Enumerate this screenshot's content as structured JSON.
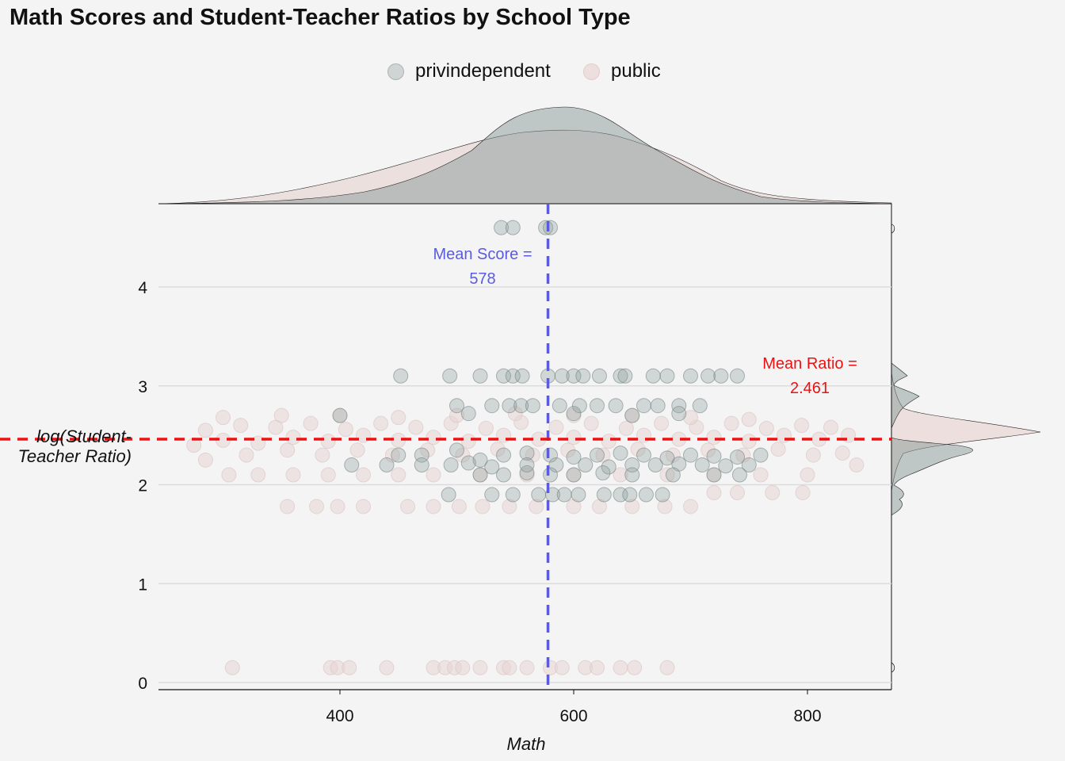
{
  "chart_data": {
    "type": "scatter",
    "title": "Math Scores and Student-Teacher Ratios by School Type",
    "xlabel": "Math",
    "ylabel": "log(Student-Teacher Ratio)",
    "xlim": [
      250,
      870
    ],
    "ylim": [
      -0.08,
      4.8
    ],
    "xticks": [
      400,
      600,
      800
    ],
    "yticks": [
      0,
      1,
      2,
      3,
      4
    ],
    "grid": "horizontal",
    "legend_position": "top",
    "marginal_plots": "density",
    "colors": {
      "privindependent": "#889A97",
      "public": "#E8D5D3",
      "mean_score_line": "#5B5BE0",
      "mean_ratio_line": "#EE1111"
    },
    "series": [
      {
        "name": "privindependent",
        "points": [
          [
            538,
            4.6
          ],
          [
            548,
            4.6
          ],
          [
            576,
            4.6
          ],
          [
            580,
            4.6
          ],
          [
            452,
            3.1
          ],
          [
            494,
            3.1
          ],
          [
            520,
            3.1
          ],
          [
            540,
            3.1
          ],
          [
            548,
            3.1
          ],
          [
            556,
            3.1
          ],
          [
            578,
            3.1
          ],
          [
            590,
            3.1
          ],
          [
            600,
            3.1
          ],
          [
            608,
            3.1
          ],
          [
            622,
            3.1
          ],
          [
            640,
            3.1
          ],
          [
            644,
            3.1
          ],
          [
            668,
            3.1
          ],
          [
            680,
            3.1
          ],
          [
            700,
            3.1
          ],
          [
            715,
            3.1
          ],
          [
            726,
            3.1
          ],
          [
            740,
            3.1
          ],
          [
            500,
            2.8
          ],
          [
            530,
            2.8
          ],
          [
            545,
            2.8
          ],
          [
            555,
            2.8
          ],
          [
            565,
            2.8
          ],
          [
            588,
            2.8
          ],
          [
            605,
            2.8
          ],
          [
            620,
            2.8
          ],
          [
            636,
            2.8
          ],
          [
            660,
            2.8
          ],
          [
            672,
            2.8
          ],
          [
            690,
            2.8
          ],
          [
            708,
            2.8
          ],
          [
            400,
            2.7
          ],
          [
            510,
            2.72
          ],
          [
            600,
            2.72
          ],
          [
            650,
            2.7
          ],
          [
            690,
            2.72
          ],
          [
            450,
            2.3
          ],
          [
            470,
            2.3
          ],
          [
            500,
            2.35
          ],
          [
            520,
            2.25
          ],
          [
            540,
            2.3
          ],
          [
            560,
            2.32
          ],
          [
            580,
            2.3
          ],
          [
            600,
            2.28
          ],
          [
            620,
            2.3
          ],
          [
            640,
            2.32
          ],
          [
            660,
            2.3
          ],
          [
            680,
            2.27
          ],
          [
            700,
            2.3
          ],
          [
            720,
            2.29
          ],
          [
            740,
            2.28
          ],
          [
            760,
            2.3
          ],
          [
            410,
            2.2
          ],
          [
            440,
            2.2
          ],
          [
            470,
            2.2
          ],
          [
            495,
            2.2
          ],
          [
            510,
            2.22
          ],
          [
            530,
            2.18
          ],
          [
            560,
            2.2
          ],
          [
            585,
            2.2
          ],
          [
            610,
            2.2
          ],
          [
            630,
            2.18
          ],
          [
            650,
            2.2
          ],
          [
            670,
            2.2
          ],
          [
            690,
            2.21
          ],
          [
            710,
            2.2
          ],
          [
            730,
            2.19
          ],
          [
            750,
            2.2
          ],
          [
            520,
            2.1
          ],
          [
            540,
            2.1
          ],
          [
            560,
            2.12
          ],
          [
            580,
            2.1
          ],
          [
            600,
            2.1
          ],
          [
            625,
            2.12
          ],
          [
            650,
            2.1
          ],
          [
            685,
            2.1
          ],
          [
            720,
            2.1
          ],
          [
            742,
            2.1
          ],
          [
            493,
            1.9
          ],
          [
            530,
            1.9
          ],
          [
            548,
            1.9
          ],
          [
            570,
            1.9
          ],
          [
            582,
            1.9
          ],
          [
            592,
            1.9
          ],
          [
            604,
            1.9
          ],
          [
            626,
            1.9
          ],
          [
            640,
            1.9
          ],
          [
            648,
            1.9
          ],
          [
            662,
            1.9
          ],
          [
            676,
            1.9
          ]
        ]
      },
      {
        "name": "public",
        "points": [
          [
            308,
            0.15
          ],
          [
            392,
            0.15
          ],
          [
            398,
            0.15
          ],
          [
            408,
            0.15
          ],
          [
            440,
            0.15
          ],
          [
            480,
            0.15
          ],
          [
            490,
            0.15
          ],
          [
            498,
            0.15
          ],
          [
            505,
            0.15
          ],
          [
            520,
            0.15
          ],
          [
            540,
            0.15
          ],
          [
            545,
            0.15
          ],
          [
            560,
            0.15
          ],
          [
            580,
            0.15
          ],
          [
            590,
            0.15
          ],
          [
            610,
            0.15
          ],
          [
            620,
            0.15
          ],
          [
            640,
            0.15
          ],
          [
            652,
            0.15
          ],
          [
            680,
            0.15
          ],
          [
            355,
            1.78
          ],
          [
            380,
            1.78
          ],
          [
            398,
            1.78
          ],
          [
            420,
            1.78
          ],
          [
            458,
            1.78
          ],
          [
            480,
            1.78
          ],
          [
            502,
            1.78
          ],
          [
            522,
            1.78
          ],
          [
            545,
            1.78
          ],
          [
            568,
            1.78
          ],
          [
            600,
            1.78
          ],
          [
            622,
            1.78
          ],
          [
            650,
            1.78
          ],
          [
            678,
            1.78
          ],
          [
            700,
            1.78
          ],
          [
            720,
            1.92
          ],
          [
            740,
            1.92
          ],
          [
            770,
            1.92
          ],
          [
            796,
            1.92
          ],
          [
            305,
            2.1
          ],
          [
            330,
            2.1
          ],
          [
            360,
            2.1
          ],
          [
            390,
            2.1
          ],
          [
            420,
            2.1
          ],
          [
            450,
            2.1
          ],
          [
            480,
            2.1
          ],
          [
            520,
            2.1
          ],
          [
            560,
            2.1
          ],
          [
            600,
            2.1
          ],
          [
            640,
            2.1
          ],
          [
            680,
            2.1
          ],
          [
            720,
            2.1
          ],
          [
            760,
            2.1
          ],
          [
            800,
            2.1
          ],
          [
            842,
            2.2
          ],
          [
            285,
            2.25
          ],
          [
            320,
            2.3
          ],
          [
            355,
            2.35
          ],
          [
            385,
            2.3
          ],
          [
            415,
            2.35
          ],
          [
            445,
            2.3
          ],
          [
            475,
            2.35
          ],
          [
            505,
            2.3
          ],
          [
            535,
            2.36
          ],
          [
            565,
            2.3
          ],
          [
            595,
            2.35
          ],
          [
            625,
            2.3
          ],
          [
            655,
            2.36
          ],
          [
            685,
            2.3
          ],
          [
            715,
            2.35
          ],
          [
            745,
            2.3
          ],
          [
            775,
            2.36
          ],
          [
            805,
            2.3
          ],
          [
            830,
            2.32
          ],
          [
            275,
            2.4
          ],
          [
            300,
            2.45
          ],
          [
            330,
            2.42
          ],
          [
            360,
            2.48
          ],
          [
            390,
            2.44
          ],
          [
            420,
            2.5
          ],
          [
            450,
            2.45
          ],
          [
            480,
            2.48
          ],
          [
            510,
            2.44
          ],
          [
            540,
            2.5
          ],
          [
            570,
            2.46
          ],
          [
            600,
            2.48
          ],
          [
            630,
            2.44
          ],
          [
            660,
            2.5
          ],
          [
            690,
            2.46
          ],
          [
            720,
            2.48
          ],
          [
            750,
            2.44
          ],
          [
            780,
            2.5
          ],
          [
            810,
            2.46
          ],
          [
            835,
            2.5
          ],
          [
            285,
            2.55
          ],
          [
            315,
            2.6
          ],
          [
            345,
            2.58
          ],
          [
            375,
            2.62
          ],
          [
            405,
            2.56
          ],
          [
            435,
            2.62
          ],
          [
            465,
            2.58
          ],
          [
            495,
            2.62
          ],
          [
            525,
            2.57
          ],
          [
            555,
            2.63
          ],
          [
            585,
            2.58
          ],
          [
            615,
            2.62
          ],
          [
            645,
            2.57
          ],
          [
            675,
            2.62
          ],
          [
            705,
            2.58
          ],
          [
            735,
            2.62
          ],
          [
            765,
            2.57
          ],
          [
            795,
            2.6
          ],
          [
            820,
            2.58
          ],
          [
            300,
            2.68
          ],
          [
            350,
            2.7
          ],
          [
            400,
            2.7
          ],
          [
            450,
            2.68
          ],
          [
            500,
            2.7
          ],
          [
            550,
            2.72
          ],
          [
            600,
            2.7
          ],
          [
            650,
            2.7
          ],
          [
            700,
            2.68
          ],
          [
            750,
            2.66
          ]
        ]
      }
    ],
    "reference_lines": [
      {
        "axis": "x",
        "value": 578,
        "label": "Mean Score =",
        "value_label": "578"
      },
      {
        "axis": "y",
        "value": 2.461,
        "label": "Mean Ratio =",
        "value_label": "2.461"
      }
    ]
  }
}
